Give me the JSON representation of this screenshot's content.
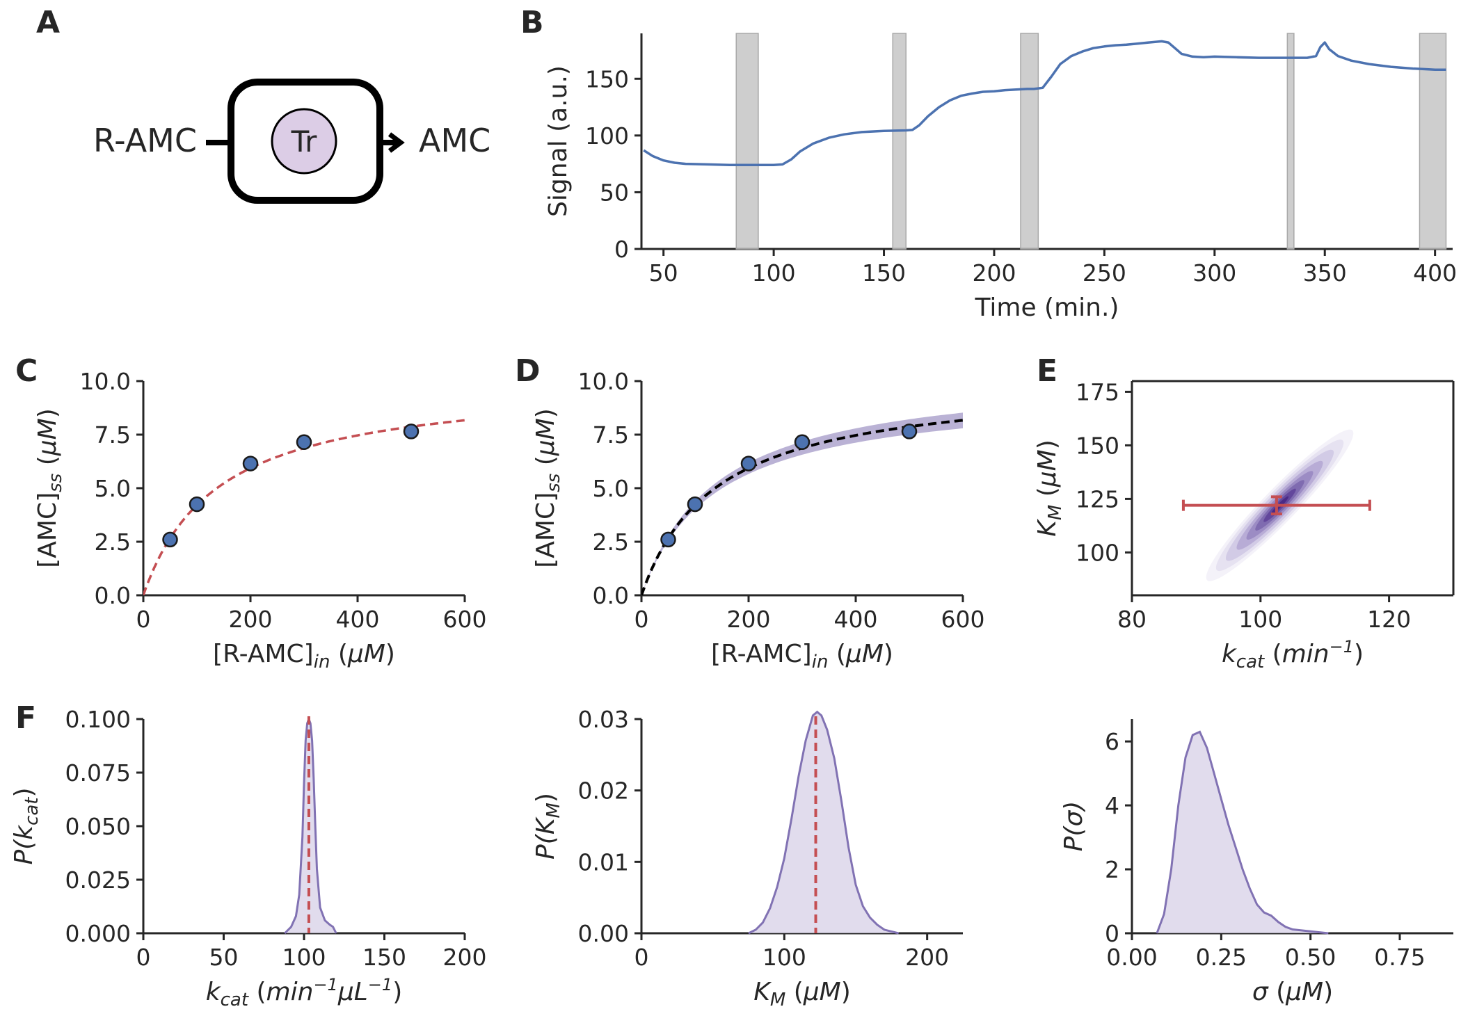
{
  "colors": {
    "axis": "#262626",
    "series_blue": "#4c72b0",
    "fit_red": "#c44e52",
    "posterior_purple": "#8172b3",
    "posterior_fill": "#dcd6ea",
    "shade_gray": "#bdbdbd",
    "enzyme_fill": "#dccde6"
  },
  "panel_letters": [
    "A",
    "B",
    "C",
    "D",
    "E",
    "F"
  ],
  "schematic": {
    "substrate": "R-AMC",
    "enzyme": "Tr",
    "product": "AMC"
  },
  "chart_data": [
    {
      "id": "B",
      "type": "line",
      "xlabel": "Time (min.)",
      "ylabel": "Signal (a.u.)",
      "xlim": [
        40,
        408
      ],
      "ylim": [
        0,
        190
      ],
      "xticks": [
        50,
        100,
        150,
        200,
        250,
        300,
        350,
        400
      ],
      "yticks": [
        0,
        50,
        100,
        150
      ],
      "shaded_intervals": [
        [
          83,
          93
        ],
        [
          154,
          160
        ],
        [
          212,
          220
        ],
        [
          333,
          336
        ],
        [
          393,
          405
        ]
      ],
      "series": [
        {
          "x": [
            41,
            45,
            50,
            55,
            60,
            70,
            80,
            90,
            100,
            104,
            108,
            112,
            118,
            125,
            132,
            140,
            150,
            160,
            163,
            166,
            170,
            175,
            180,
            185,
            190,
            195,
            200,
            205,
            210,
            215,
            218,
            222,
            226,
            230,
            235,
            240,
            245,
            250,
            255,
            260,
            265,
            270,
            276,
            279,
            282,
            285,
            290,
            295,
            300,
            310,
            320,
            330,
            335,
            338,
            342,
            346,
            348,
            350,
            352,
            356,
            362,
            370,
            380,
            390,
            395,
            400,
            405
          ],
          "y": [
            87,
            82,
            78,
            76,
            75,
            74.5,
            74,
            74,
            74,
            74.5,
            79,
            86,
            93,
            98,
            101,
            103,
            104,
            104.5,
            105,
            109,
            117,
            125,
            131,
            135,
            137,
            138.5,
            139,
            140,
            140.5,
            141,
            141,
            142,
            152,
            163,
            170,
            174,
            177,
            178.5,
            179.5,
            180,
            181,
            182,
            183,
            182,
            177,
            172,
            169.5,
            169,
            169.5,
            169,
            168.5,
            168.5,
            168.5,
            168.5,
            168.5,
            170,
            178,
            182,
            176,
            170,
            166,
            163,
            160.5,
            159,
            158.5,
            158,
            158
          ]
        }
      ]
    },
    {
      "id": "C",
      "type": "scatter",
      "xlabel": "[R-AMC]",
      "xlabel_sub": "in",
      "xlabel_unit": " (μM)",
      "ylabel": "[AMC]",
      "ylabel_sub": "ss",
      "ylabel_unit": " (μM)",
      "xlim": [
        0,
        600
      ],
      "ylim": [
        0,
        10
      ],
      "xticks": [
        0,
        200,
        400,
        600
      ],
      "yticks": [
        0.0,
        2.5,
        5.0,
        7.5,
        10.0
      ],
      "points": {
        "x": [
          50,
          100,
          200,
          300,
          500
        ],
        "y": [
          2.6,
          4.25,
          6.15,
          7.15,
          7.65
        ]
      },
      "fit": {
        "style": "dashed",
        "kind": "michaelis-menten",
        "vmax": 10.06,
        "km": 139
      }
    },
    {
      "id": "D",
      "type": "scatter",
      "xlabel": "[R-AMC]",
      "xlabel_sub": "in",
      "xlabel_unit": " (μM)",
      "ylabel": "[AMC]",
      "ylabel_sub": "ss",
      "ylabel_unit": " (μM)",
      "xlim": [
        0,
        600
      ],
      "ylim": [
        0,
        10
      ],
      "xticks": [
        0,
        200,
        400,
        600
      ],
      "yticks": [
        0.0,
        2.5,
        5.0,
        7.5,
        10.0
      ],
      "points": {
        "x": [
          50,
          100,
          200,
          300,
          500
        ],
        "y": [
          2.6,
          4.25,
          6.15,
          7.15,
          7.65
        ]
      },
      "fit": {
        "style": "dashed",
        "kind": "michaelis-menten",
        "vmax": 10.06,
        "km": 139
      },
      "band": {
        "vmax_low": 9.6,
        "vmax_high": 10.5,
        "km": 139
      }
    },
    {
      "id": "E",
      "type": "heatmap",
      "xlabel": "k",
      "xlabel_sub": "cat",
      "xlabel_unit": " (min",
      "xlabel_sup": "−1",
      "xlabel_close": ")",
      "ylabel": "K",
      "ylabel_sub": "M",
      "ylabel_unit": " (μM)",
      "xlim": [
        80,
        130
      ],
      "ylim": [
        80,
        180
      ],
      "xticks": [
        80,
        100,
        120
      ],
      "yticks": [
        100,
        125,
        150,
        175
      ],
      "density": {
        "center": [
          103,
          122
        ],
        "sd_x": 4.5,
        "sd_y": 15,
        "correlation": 0.93
      },
      "estimate": {
        "x": 102.5,
        "y": 122,
        "x_err": [
          88,
          117
        ],
        "y_err": [
          118,
          126
        ]
      }
    },
    {
      "id": "F1",
      "type": "area",
      "xlabel": "k",
      "xlabel_sub": "cat",
      "xlabel_unit": " (min",
      "xlabel_sup": "−1",
      "xlabel_mid": "μL",
      "xlabel_sup2": "−1",
      "xlabel_close": ")",
      "ylabel": "P(k",
      "ylabel_sub": "cat",
      "ylabel_close": ")",
      "xlim": [
        0,
        200
      ],
      "ylim": [
        0,
        0.1
      ],
      "xticks": [
        0,
        50,
        100,
        150,
        200
      ],
      "yticks": [
        0.0,
        0.025,
        0.05,
        0.075,
        0.1
      ],
      "ytick_labels": [
        "0.000",
        "0.025",
        "0.050",
        "0.075",
        "0.100"
      ],
      "density": {
        "x": [
          88,
          92,
          95,
          97,
          99,
          100,
          101,
          102,
          103,
          104,
          105,
          106,
          107,
          108,
          110,
          113,
          116,
          118,
          120
        ],
        "y": [
          0,
          0.003,
          0.008,
          0.018,
          0.045,
          0.07,
          0.09,
          0.098,
          0.1,
          0.098,
          0.09,
          0.072,
          0.05,
          0.03,
          0.012,
          0.006,
          0.004,
          0.003,
          0
        ]
      },
      "reference_line": 103
    },
    {
      "id": "F2",
      "type": "area",
      "xlabel": "K",
      "xlabel_sub": "M",
      "xlabel_unit": " (μM)",
      "ylabel": "P(K",
      "ylabel_sub": "M",
      "ylabel_close": ")",
      "xlim": [
        0,
        225
      ],
      "ylim": [
        0,
        0.03
      ],
      "xticks": [
        0,
        100,
        200
      ],
      "yticks": [
        0.0,
        0.01,
        0.02,
        0.03
      ],
      "ytick_labels": [
        "0.00",
        "0.01",
        "0.02",
        "0.03"
      ],
      "density": {
        "x": [
          75,
          80,
          85,
          90,
          95,
          100,
          105,
          110,
          115,
          120,
          123,
          126,
          130,
          135,
          140,
          145,
          150,
          155,
          160,
          165,
          170,
          180
        ],
        "y": [
          0,
          0.0005,
          0.0015,
          0.0035,
          0.0065,
          0.0105,
          0.016,
          0.022,
          0.027,
          0.0305,
          0.031,
          0.0305,
          0.0285,
          0.0245,
          0.0185,
          0.012,
          0.0068,
          0.0038,
          0.0022,
          0.0012,
          0.0005,
          0
        ]
      },
      "reference_line": 122
    },
    {
      "id": "F3",
      "type": "area",
      "xlabel": "σ",
      "xlabel_unit": " (μM)",
      "ylabel": "P(σ)",
      "xlim": [
        0,
        0.9
      ],
      "ylim": [
        0,
        6.7
      ],
      "xticks": [
        0,
        0.25,
        0.5,
        0.75
      ],
      "yticks": [
        0,
        2,
        4,
        6
      ],
      "ytick_labels": [
        "0",
        "2",
        "4",
        "6"
      ],
      "xtick_labels": [
        "0.00",
        "0.25",
        "0.50",
        "0.75"
      ],
      "density": {
        "x": [
          0.07,
          0.09,
          0.11,
          0.13,
          0.15,
          0.17,
          0.19,
          0.21,
          0.23,
          0.25,
          0.27,
          0.29,
          0.31,
          0.33,
          0.35,
          0.37,
          0.39,
          0.41,
          0.43,
          0.45,
          0.5,
          0.55
        ],
        "y": [
          0,
          0.6,
          2.0,
          4.0,
          5.5,
          6.2,
          6.3,
          5.8,
          5.0,
          4.2,
          3.4,
          2.7,
          2.0,
          1.4,
          0.9,
          0.65,
          0.55,
          0.35,
          0.2,
          0.12,
          0.06,
          0
        ]
      }
    }
  ]
}
